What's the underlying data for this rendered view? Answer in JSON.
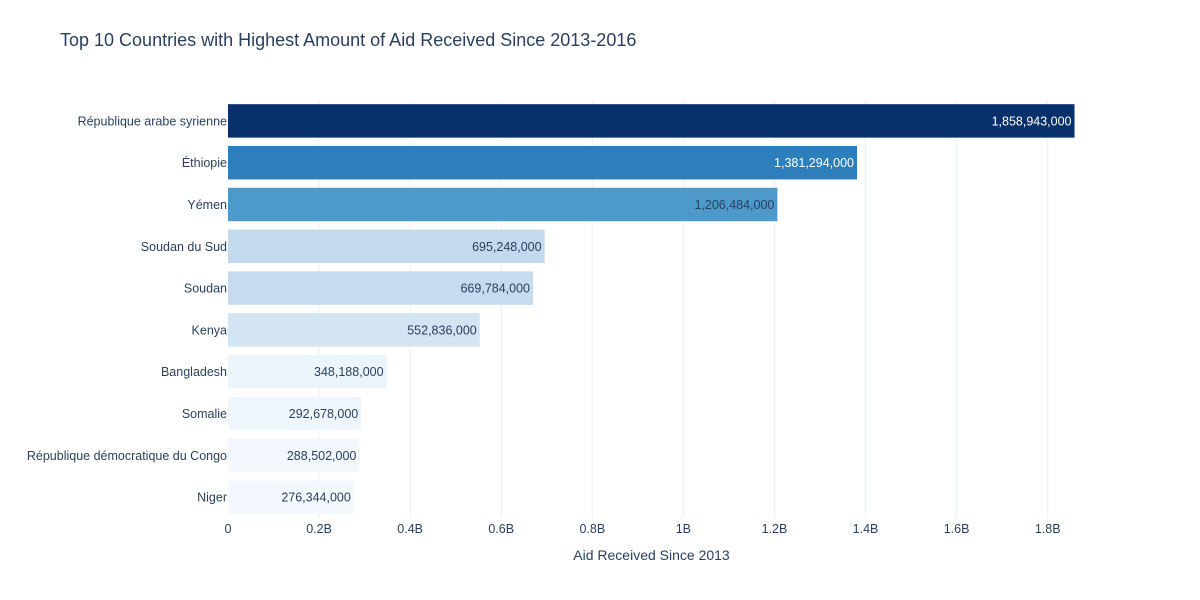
{
  "chart_data": {
    "type": "bar",
    "orientation": "horizontal",
    "title": "Top 10 Countries with Highest Amount of Aid Received Since 2013-2016",
    "xlabel": "Aid Received Since 2013",
    "ylabel": "",
    "xlim": [
      0,
      1860000000
    ],
    "x_ticks": [
      {
        "value": 0,
        "label": "0"
      },
      {
        "value": 200000000,
        "label": "0.2B"
      },
      {
        "value": 400000000,
        "label": "0.4B"
      },
      {
        "value": 600000000,
        "label": "0.6B"
      },
      {
        "value": 800000000,
        "label": "0.8B"
      },
      {
        "value": 1000000000,
        "label": "1B"
      },
      {
        "value": 1200000000,
        "label": "1.2B"
      },
      {
        "value": 1400000000,
        "label": "1.4B"
      },
      {
        "value": 1600000000,
        "label": "1.6B"
      },
      {
        "value": 1800000000,
        "label": "1.8B"
      }
    ],
    "grid": true,
    "legend": false,
    "bars": [
      {
        "category": "République arabe syrienne",
        "value": 1858943000,
        "label": "1,858,943,000",
        "color": "#08306b",
        "label_color": "#ffffff"
      },
      {
        "category": "Éthiopie",
        "value": 1381294000,
        "label": "1,381,294,000",
        "color": "#2e7ebc",
        "label_color": "#ffffff"
      },
      {
        "category": "Yémen",
        "value": 1206484000,
        "label": "1,206,484,000",
        "color": "#4d99ca",
        "label_color": "#2a3f5f"
      },
      {
        "category": "Soudan du Sud",
        "value": 695248000,
        "label": "695,248,000",
        "color": "#c2d9ee",
        "label_color": "#2a3f5f"
      },
      {
        "category": "Soudan",
        "value": 669784000,
        "label": "669,784,000",
        "color": "#c6dbef",
        "label_color": "#2a3f5f"
      },
      {
        "category": "Kenya",
        "value": 552836000,
        "label": "552,836,000",
        "color": "#d3e4f3",
        "label_color": "#2a3f5f"
      },
      {
        "category": "Bangladesh",
        "value": 348188000,
        "label": "348,188,000",
        "color": "#ebf3fb",
        "label_color": "#2a3f5f"
      },
      {
        "category": "Somalie",
        "value": 292678000,
        "label": "292,678,000",
        "color": "#f0f6fd",
        "label_color": "#2a3f5f"
      },
      {
        "category": "République démocratique du Congo",
        "value": 288502000,
        "label": "288,502,000",
        "color": "#f1f7fd",
        "label_color": "#2a3f5f"
      },
      {
        "category": "Niger",
        "value": 276344000,
        "label": "276,344,000",
        "color": "#f2f8fd",
        "label_color": "#2a3f5f"
      }
    ],
    "colors": {
      "grid": "#ebf0f8",
      "text": "#2a3f5f",
      "background": "#ffffff"
    }
  }
}
